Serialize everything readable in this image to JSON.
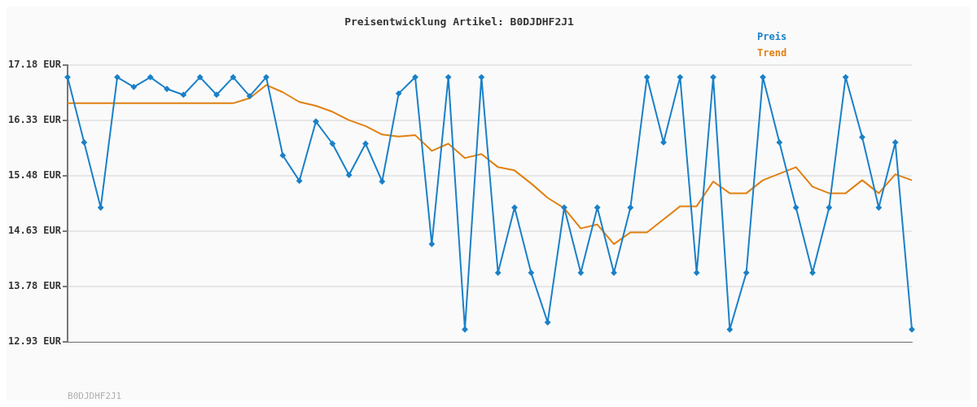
{
  "chart_data": {
    "type": "line",
    "title": "Preisentwicklung Artikel: B0DJDHF2J1",
    "categories": [
      null,
      null,
      null,
      null,
      null,
      null,
      null,
      null,
      null,
      null,
      null,
      null,
      null,
      null,
      null,
      null,
      null,
      null,
      null,
      null,
      null,
      null,
      null,
      null,
      null,
      null,
      null,
      null,
      null,
      null,
      null,
      null,
      null,
      null,
      null,
      null,
      null,
      null,
      null,
      null,
      null,
      null,
      null,
      null,
      null,
      null,
      null,
      null,
      null,
      null,
      null,
      null
    ],
    "series": [
      {
        "name": "Preis",
        "color": "#1a80c8",
        "marker": "diamond",
        "values": [
          16.99,
          15.99,
          14.99,
          16.99,
          16.84,
          16.99,
          16.81,
          16.72,
          16.99,
          16.72,
          16.99,
          16.7,
          16.99,
          15.79,
          15.4,
          16.31,
          15.97,
          15.49,
          15.97,
          15.39,
          16.74,
          16.99,
          14.43,
          16.99,
          13.12,
          16.99,
          13.99,
          14.99,
          13.99,
          13.23,
          14.99,
          13.99,
          14.99,
          13.99,
          14.99,
          16.99,
          15.99,
          16.99,
          13.99,
          16.99,
          13.12,
          13.99,
          16.99,
          15.99,
          14.99,
          13.99,
          14.99,
          16.99,
          16.07,
          14.99,
          15.99,
          13.12
        ]
      },
      {
        "name": "Trend",
        "color": "#e08010",
        "marker": "none",
        "values": [
          16.59,
          16.59,
          16.59,
          16.59,
          16.59,
          16.59,
          16.59,
          16.59,
          16.59,
          16.59,
          16.59,
          16.67,
          16.87,
          16.76,
          16.61,
          16.55,
          16.46,
          16.33,
          16.24,
          16.11,
          16.08,
          16.1,
          15.86,
          15.97,
          15.75,
          15.81,
          15.61,
          15.56,
          15.36,
          15.14,
          14.98,
          14.67,
          14.73,
          14.43,
          14.61,
          14.61,
          14.81,
          15.01,
          15.01,
          15.39,
          15.21,
          15.21,
          15.41,
          15.51,
          15.61,
          15.31,
          15.21,
          15.21,
          15.41,
          15.21,
          15.5,
          15.41
        ]
      }
    ],
    "ylim": [
      12.93,
      17.18
    ],
    "yticks": [
      {
        "value": 12.93,
        "label": "12.93 EUR"
      },
      {
        "value": 13.78,
        "label": "13.78 EUR"
      },
      {
        "value": 14.63,
        "label": "14.63 EUR"
      },
      {
        "value": 15.48,
        "label": "15.48 EUR"
      },
      {
        "value": 16.33,
        "label": "16.33 EUR"
      },
      {
        "value": 17.18,
        "label": "17.18 EUR"
      }
    ],
    "grid": "y",
    "legend": "top right",
    "line_style": "solid",
    "annotations": [
      "B0DJDHF2J1"
    ]
  }
}
